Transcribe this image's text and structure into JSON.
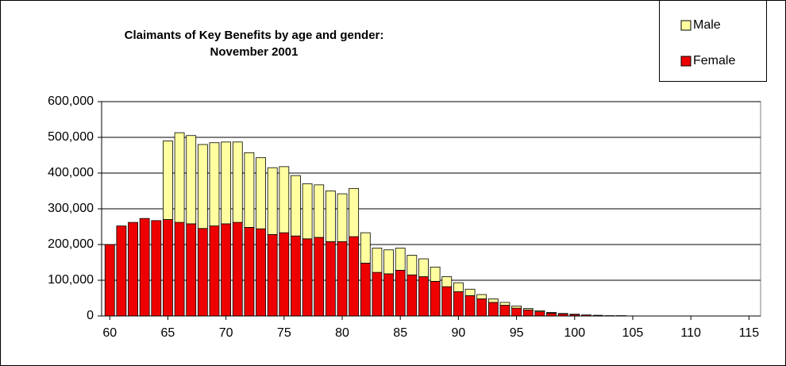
{
  "chart_data": {
    "type": "stacked-bar",
    "title": [
      "Claimants of Key Benefits by age and gender:",
      "November 2001"
    ],
    "x": [
      60,
      61,
      62,
      63,
      64,
      65,
      66,
      67,
      68,
      69,
      70,
      71,
      72,
      73,
      74,
      75,
      76,
      77,
      78,
      79,
      80,
      81,
      82,
      83,
      84,
      85,
      86,
      87,
      88,
      89,
      90,
      91,
      92,
      93,
      94,
      95,
      96,
      97,
      98,
      99,
      100,
      101,
      102,
      103,
      104
    ],
    "series": [
      {
        "name": "Female",
        "color": "#ee0000",
        "values": [
          200000,
          252000,
          262000,
          273000,
          267000,
          270000,
          262000,
          258000,
          245000,
          252000,
          258000,
          262000,
          248000,
          244000,
          228000,
          233000,
          224000,
          216000,
          220000,
          208000,
          208000,
          222000,
          148000,
          122000,
          118000,
          128000,
          115000,
          110000,
          97000,
          82000,
          68000,
          57000,
          48000,
          38000,
          30000,
          22000,
          17000,
          12000,
          8000,
          6000,
          4000,
          3000,
          2000,
          1000,
          1000
        ]
      },
      {
        "name": "Male",
        "color": "#ffffa0",
        "values": [
          0,
          0,
          0,
          0,
          0,
          220000,
          251000,
          247000,
          235000,
          233000,
          229000,
          225000,
          209000,
          199000,
          187000,
          185000,
          169000,
          154000,
          147000,
          142000,
          134000,
          135000,
          85000,
          68000,
          67000,
          62000,
          55000,
          50000,
          40000,
          28000,
          25000,
          18000,
          12000,
          10000,
          8000,
          6000,
          4000,
          3000,
          2000,
          1000,
          1000,
          0,
          0,
          0,
          0
        ]
      }
    ],
    "xlim": [
      59.3,
      116
    ],
    "xticks": [
      60,
      65,
      70,
      75,
      80,
      85,
      90,
      95,
      100,
      105,
      110,
      115
    ],
    "ylim": [
      0,
      600000
    ],
    "yticks": [
      0,
      {
        "value": 100000,
        "label": "100,000"
      },
      {
        "value": 200000,
        "label": "200,000"
      },
      {
        "value": 300000,
        "label": "300,000"
      },
      {
        "value": 400000,
        "label": "400,000"
      },
      {
        "value": 500000,
        "label": "500,000"
      },
      {
        "value": 600000,
        "label": "600,000"
      }
    ],
    "grid": true,
    "legend": "top-right"
  }
}
